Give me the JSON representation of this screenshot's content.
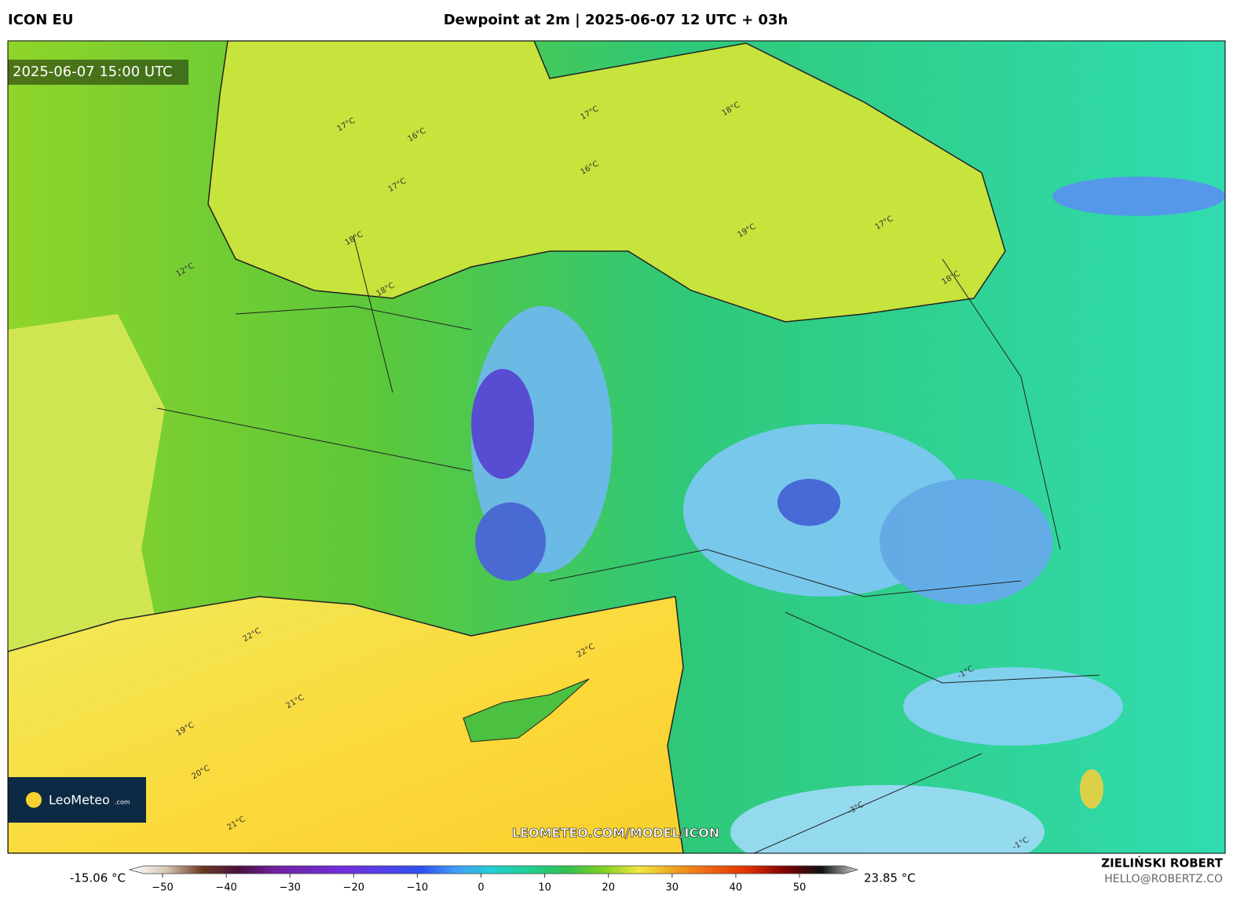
{
  "header": {
    "model": "ICON EU",
    "title": "Dewpoint at 2m | 2025-06-07 12 UTC + 03h"
  },
  "map": {
    "valid_time": "2025-06-07 15:00 UTC",
    "watermark": "LEOMETEO.COM/MODEL/ICON",
    "logo": {
      "name": "LeoMeteo",
      "suffix": ".com"
    },
    "contour_labels": [
      "17°C",
      "16°C",
      "17°C",
      "16°C",
      "18°C",
      "17°C",
      "18°C",
      "18°C",
      "19°C",
      "17°C",
      "18°C",
      "12°C",
      "22°C",
      "21°C",
      "22°C",
      "19°C",
      "20°C",
      "21°C",
      "-3°C",
      "-1°C",
      "-1°C"
    ]
  },
  "colorbar": {
    "min_label": "-15.06 °C",
    "max_label": "23.85 °C",
    "ticks": [
      "−50",
      "−40",
      "−30",
      "−20",
      "−10",
      "0",
      "10",
      "20",
      "30",
      "40",
      "50"
    ]
  },
  "footer": {
    "author": "ZIELIŃSKI ROBERT",
    "email": "HELLO@ROBERTZ.CO"
  }
}
